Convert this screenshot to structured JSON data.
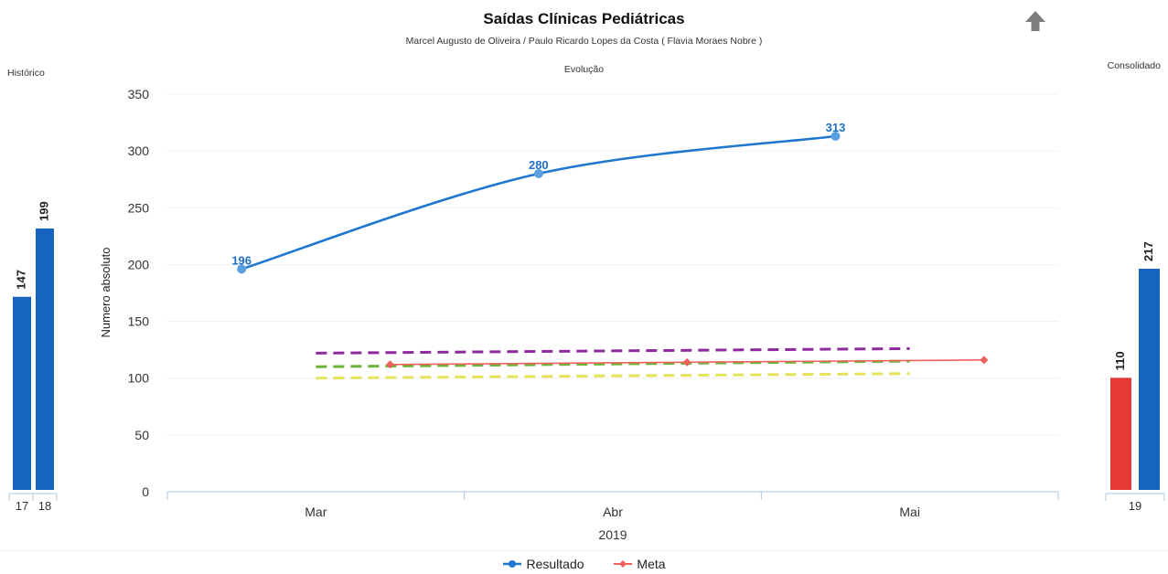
{
  "header": {
    "title": "Saídas Clínicas Pediátricas",
    "subtitle": "Marcel Augusto de Oliveira / Paulo Ricardo Lopes da Costa ( Flavia Moraes Nobre )",
    "panel_main_label": "Evolução",
    "panel_left_label": "Histórico",
    "panel_right_label": "Consolidado",
    "up_icon": "up-arrow-icon"
  },
  "legend": {
    "items": [
      {
        "label": "Resultado",
        "color": "#1f77d0"
      },
      {
        "label": "Meta",
        "color": "#f0605a"
      }
    ]
  },
  "chart_data": [
    {
      "type": "bar",
      "panel": "Histórico",
      "categories": [
        "17",
        "18"
      ],
      "values": [
        147,
        199
      ],
      "colors": [
        "#1565c0",
        "#1565c0"
      ],
      "ylim": [
        0,
        199
      ]
    },
    {
      "type": "line",
      "panel": "Evolução",
      "xlabel": "2019",
      "ylabel": "Numero absoluto",
      "categories": [
        "Mar",
        "Abr",
        "Mai"
      ],
      "ylim": [
        0,
        350
      ],
      "yticks": [
        0,
        50,
        100,
        150,
        200,
        250,
        300,
        350
      ],
      "grid": true,
      "series": [
        {
          "name": "Resultado",
          "color": "#1f77d0",
          "smooth": true,
          "values": [
            196,
            280,
            313
          ],
          "data_labels": [
            "196",
            "280",
            "313"
          ]
        },
        {
          "name": "Meta",
          "color": "#f0605a",
          "values": [
            112,
            114,
            116
          ]
        }
      ],
      "reference_lines": [
        {
          "color": "#8e2a9e",
          "style": "dashed",
          "start": 122,
          "end": 126
        },
        {
          "color": "#6ab43a",
          "style": "dashed",
          "start": 110,
          "end": 115
        },
        {
          "color": "#e4e35a",
          "style": "dashed",
          "start": 100,
          "end": 104
        }
      ],
      "legend_position": "bottom"
    },
    {
      "type": "bar",
      "panel": "Consolidado",
      "categories": [
        "19"
      ],
      "series": [
        {
          "value": 110,
          "color": "#e53935"
        },
        {
          "value": 217,
          "color": "#1565c0"
        }
      ],
      "ylim": [
        0,
        217
      ]
    }
  ]
}
